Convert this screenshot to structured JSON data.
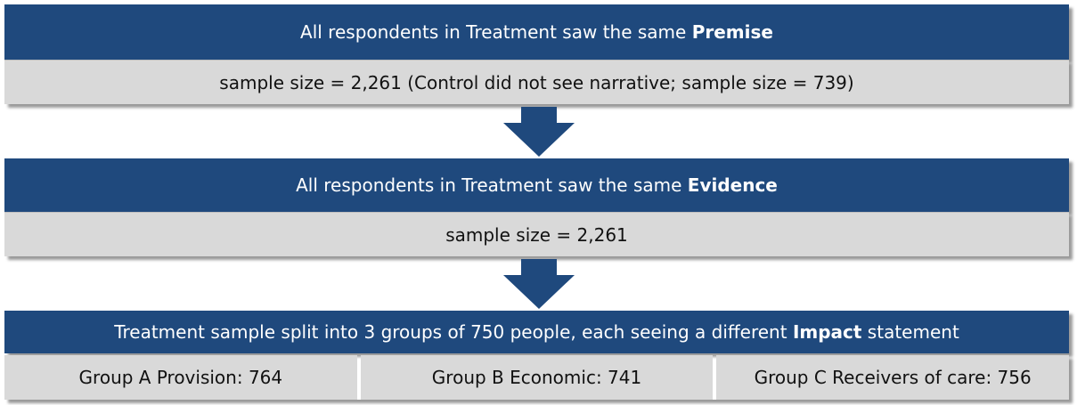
{
  "blocks": [
    {
      "title": [
        "All respondents in Treatment saw the same ",
        "Premise"
      ],
      "detail": "sample size = 2,261 (Control did not see narrative; sample size = 739)"
    },
    {
      "title": [
        "All respondents in Treatment saw the same ",
        "Evidence"
      ],
      "detail": "sample size = 2,261"
    },
    {
      "title": [
        "Treatment sample split into 3 groups of 750 people, each seeing a different ",
        "Impact",
        " statement"
      ],
      "groups": [
        "Group A Provision: 764",
        "Group B Economic: 741",
        "Group C Receivers of care: 756"
      ]
    }
  ]
}
